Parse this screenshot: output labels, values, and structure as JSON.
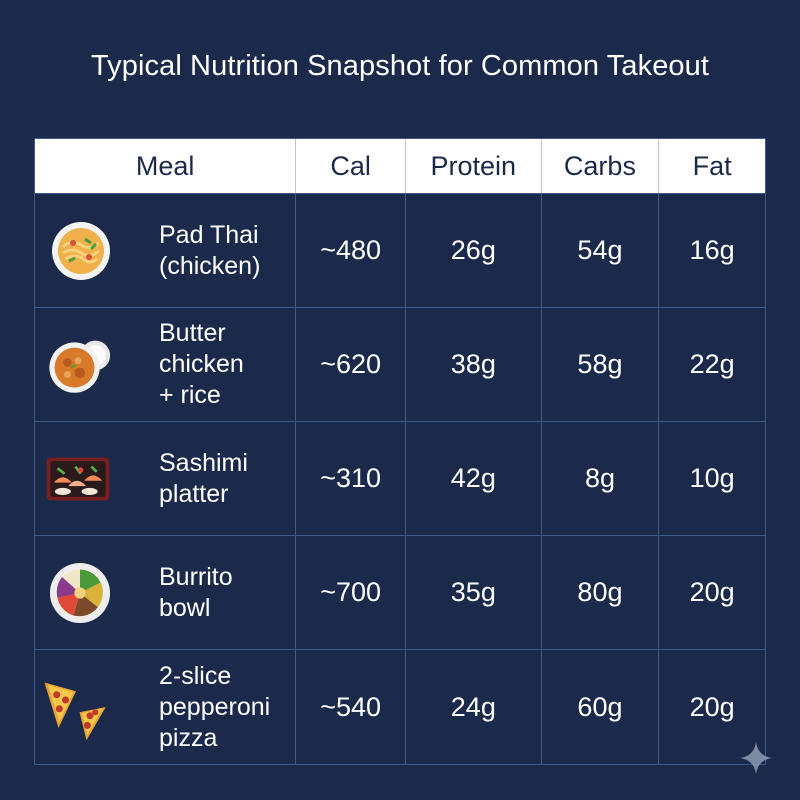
{
  "title": "Typical Nutrition Snapshot for Common Takeout",
  "headers": {
    "meal": "Meal",
    "cal": "Cal",
    "protein": "Protein",
    "carbs": "Carbs",
    "fat": "Fat"
  },
  "rows": [
    {
      "meal": "Pad Thai\n(chicken)",
      "cal": "~480",
      "protein": "26g",
      "carbs": "54g",
      "fat": "16g",
      "icon": "pad-thai-icon"
    },
    {
      "meal": "Butter\nchicken\n+ rice",
      "cal": "~620",
      "protein": "38g",
      "carbs": "58g",
      "fat": "22g",
      "icon": "butter-chicken-icon"
    },
    {
      "meal": "Sashimi\nplatter",
      "cal": "~310",
      "protein": "42g",
      "carbs": "8g",
      "fat": "10g",
      "icon": "sashimi-icon"
    },
    {
      "meal": "Burrito\nbowl",
      "cal": "~700",
      "protein": "35g",
      "carbs": "80g",
      "fat": "20g",
      "icon": "burrito-bowl-icon"
    },
    {
      "meal": "2-slice\npepperoni\npizza",
      "cal": "~540",
      "protein": "24g",
      "carbs": "60g",
      "fat": "20g",
      "icon": "pizza-icon"
    }
  ]
}
